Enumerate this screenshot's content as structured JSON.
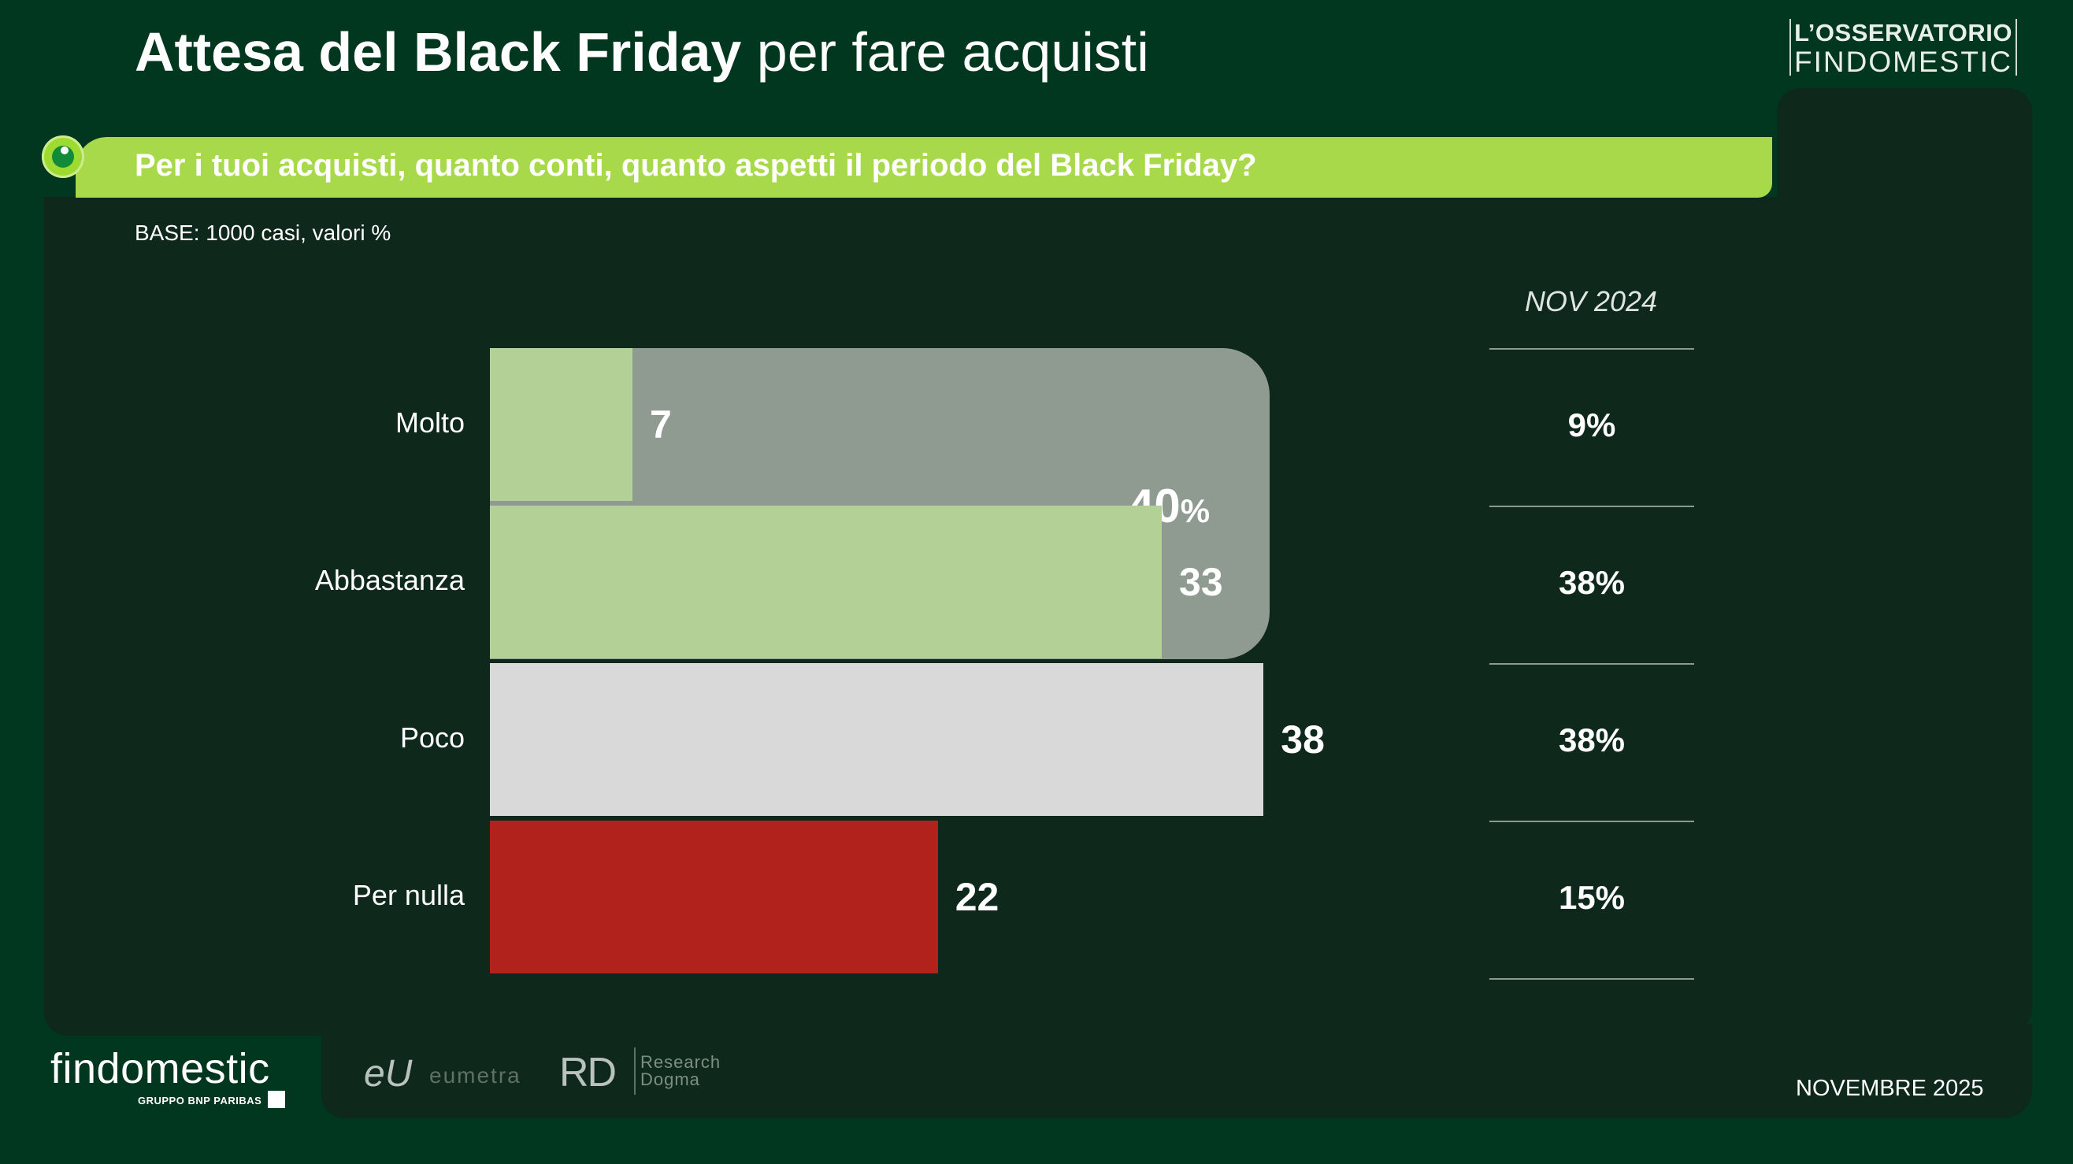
{
  "title": {
    "bold": "Attesa del Black Friday",
    "light": "per fare acquisti"
  },
  "brand": {
    "line1": "L’OSSERVATORIO",
    "line2": "FINDOMESTIC"
  },
  "question": "Per i tuoi acquisti, quanto conti, quanto aspetti il periodo del Black Friday?",
  "base": "BASE: 1000 casi, valori %",
  "comparison_label": "NOV 2024",
  "group_total": {
    "value": "40",
    "unit": "%"
  },
  "footer": {
    "logo": "findomestic",
    "logo_sub": "GRUPPO BNP PARIBAS",
    "partner1": "eU",
    "partner1_text": "eumetra",
    "partner2": "RD",
    "partner2_line1": "Research",
    "partner2_line2": "Dogma",
    "date": "NOVEMBRE 2025"
  },
  "chart_data": {
    "type": "bar",
    "orientation": "horizontal",
    "categories": [
      "Molto",
      "Abbastanza",
      "Poco",
      "Per nulla"
    ],
    "values": [
      7,
      33,
      38,
      22
    ],
    "value_labels": [
      "7",
      "33",
      "38",
      "22"
    ],
    "colors": [
      "#b3d196",
      "#b3d196",
      "#d9d9d9",
      "#b0221b"
    ],
    "group_total": 40,
    "comparison": {
      "label": "NOV 2024",
      "values": [
        "9%",
        "38%",
        "38%",
        "15%"
      ]
    },
    "xlim": [
      0,
      100
    ],
    "grid": false
  }
}
